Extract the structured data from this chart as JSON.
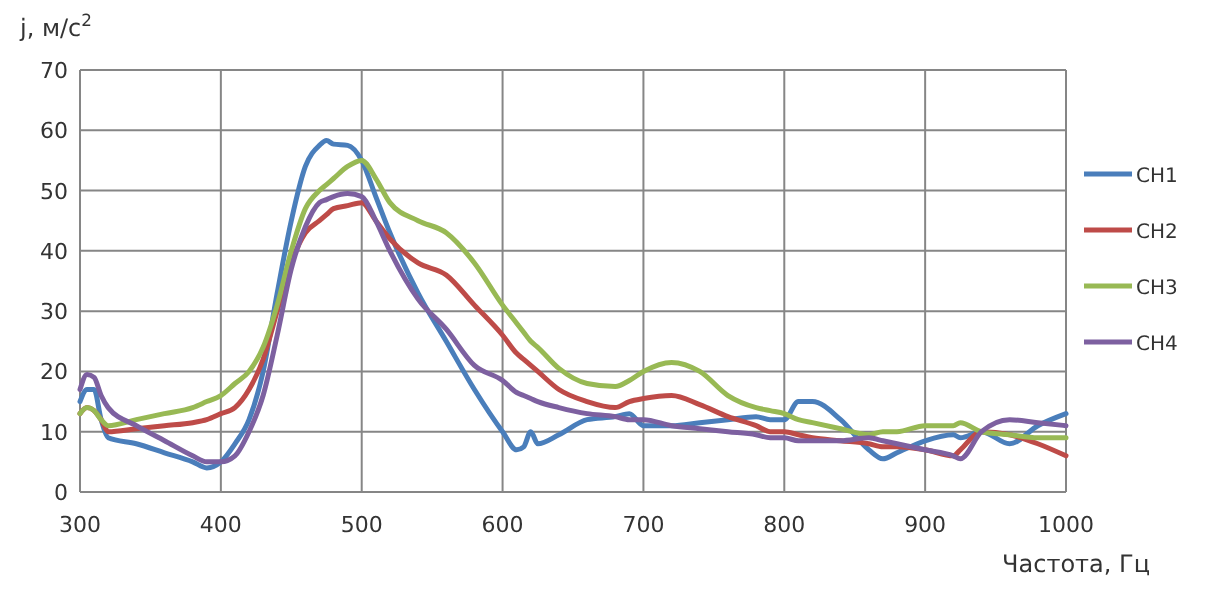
{
  "chart_data": {
    "type": "line",
    "ylabel": "j, м/с$^{2}$",
    "xlabel": "Частота, Гц",
    "x": [
      300,
      305,
      310,
      315,
      320,
      340,
      360,
      380,
      390,
      400,
      410,
      420,
      430,
      440,
      450,
      460,
      470,
      475,
      480,
      490,
      500,
      510,
      520,
      540,
      560,
      580,
      600,
      610,
      615,
      620,
      625,
      640,
      660,
      680,
      690,
      700,
      720,
      740,
      760,
      780,
      790,
      800,
      810,
      820,
      840,
      860,
      870,
      880,
      900,
      920,
      925,
      940,
      960,
      980,
      1000
    ],
    "series": [
      {
        "name": "CH1",
        "color": "#4a7ebb",
        "values": [
          15,
          17,
          17,
          12,
          9,
          8,
          6.5,
          5,
          4,
          5,
          8,
          12,
          20,
          33,
          45,
          54,
          57.5,
          58.3,
          57.7,
          57.5,
          55,
          49,
          43,
          33,
          25,
          17,
          10,
          7,
          7.5,
          10,
          8,
          9.5,
          12,
          12.5,
          13,
          11,
          11,
          11.5,
          12,
          12.5,
          12,
          12,
          15,
          15,
          12,
          7,
          5.5,
          6.5,
          8.5,
          9.5,
          9,
          10,
          8,
          11,
          13
        ]
      },
      {
        "name": "CH2",
        "color": "#be4b48",
        "values": [
          13,
          14,
          13.5,
          12,
          10,
          10.5,
          11,
          11.5,
          12,
          13,
          14,
          17,
          22,
          30,
          38,
          43,
          45,
          46,
          47,
          47.5,
          48,
          45,
          42,
          38,
          36,
          31,
          26,
          23,
          22,
          21,
          20,
          17,
          15,
          14,
          15,
          15.5,
          16,
          14.5,
          12.5,
          11,
          10,
          10,
          9.5,
          9,
          8.5,
          8,
          7.5,
          7.5,
          7,
          6,
          7,
          10,
          9.5,
          8,
          6
        ]
      },
      {
        "name": "CH3",
        "color": "#98b954",
        "values": [
          13,
          14,
          13.5,
          12,
          11,
          12,
          13,
          14,
          15,
          16,
          18,
          20,
          24,
          31,
          40,
          47,
          50,
          51,
          52,
          54,
          55,
          52,
          48,
          45,
          43,
          38,
          31,
          28,
          26.5,
          25,
          24,
          20.5,
          18,
          17.5,
          18.5,
          20,
          21.5,
          20,
          16,
          14,
          13.5,
          13,
          12,
          11.5,
          10.5,
          9.5,
          10,
          10,
          11,
          11,
          11.5,
          10,
          9.5,
          9,
          9
        ]
      },
      {
        "name": "CH4",
        "color": "#7d60a0",
        "values": [
          17,
          19.5,
          19,
          16,
          14,
          11,
          8.5,
          6,
          5,
          5,
          6,
          10,
          16,
          26,
          37,
          44,
          48,
          48.5,
          49,
          49.5,
          49,
          45,
          40,
          32,
          27,
          21,
          18.5,
          16.5,
          16,
          15.5,
          15,
          14,
          13,
          12.5,
          12,
          12,
          11,
          10.5,
          10,
          9.5,
          9,
          9,
          8.5,
          8.5,
          8.5,
          9,
          8.5,
          8,
          7,
          6,
          5.5,
          10,
          12,
          11.5,
          11
        ]
      }
    ],
    "xlim": [
      300,
      1000
    ],
    "xticks": [
      300,
      400,
      500,
      600,
      700,
      800,
      900,
      1000
    ],
    "ylim": [
      0,
      70
    ],
    "yticks": [
      0,
      10,
      20,
      30,
      40,
      50,
      60,
      70
    ],
    "grid": true,
    "legend": "right",
    "marker": "none",
    "line_style": "solid"
  }
}
